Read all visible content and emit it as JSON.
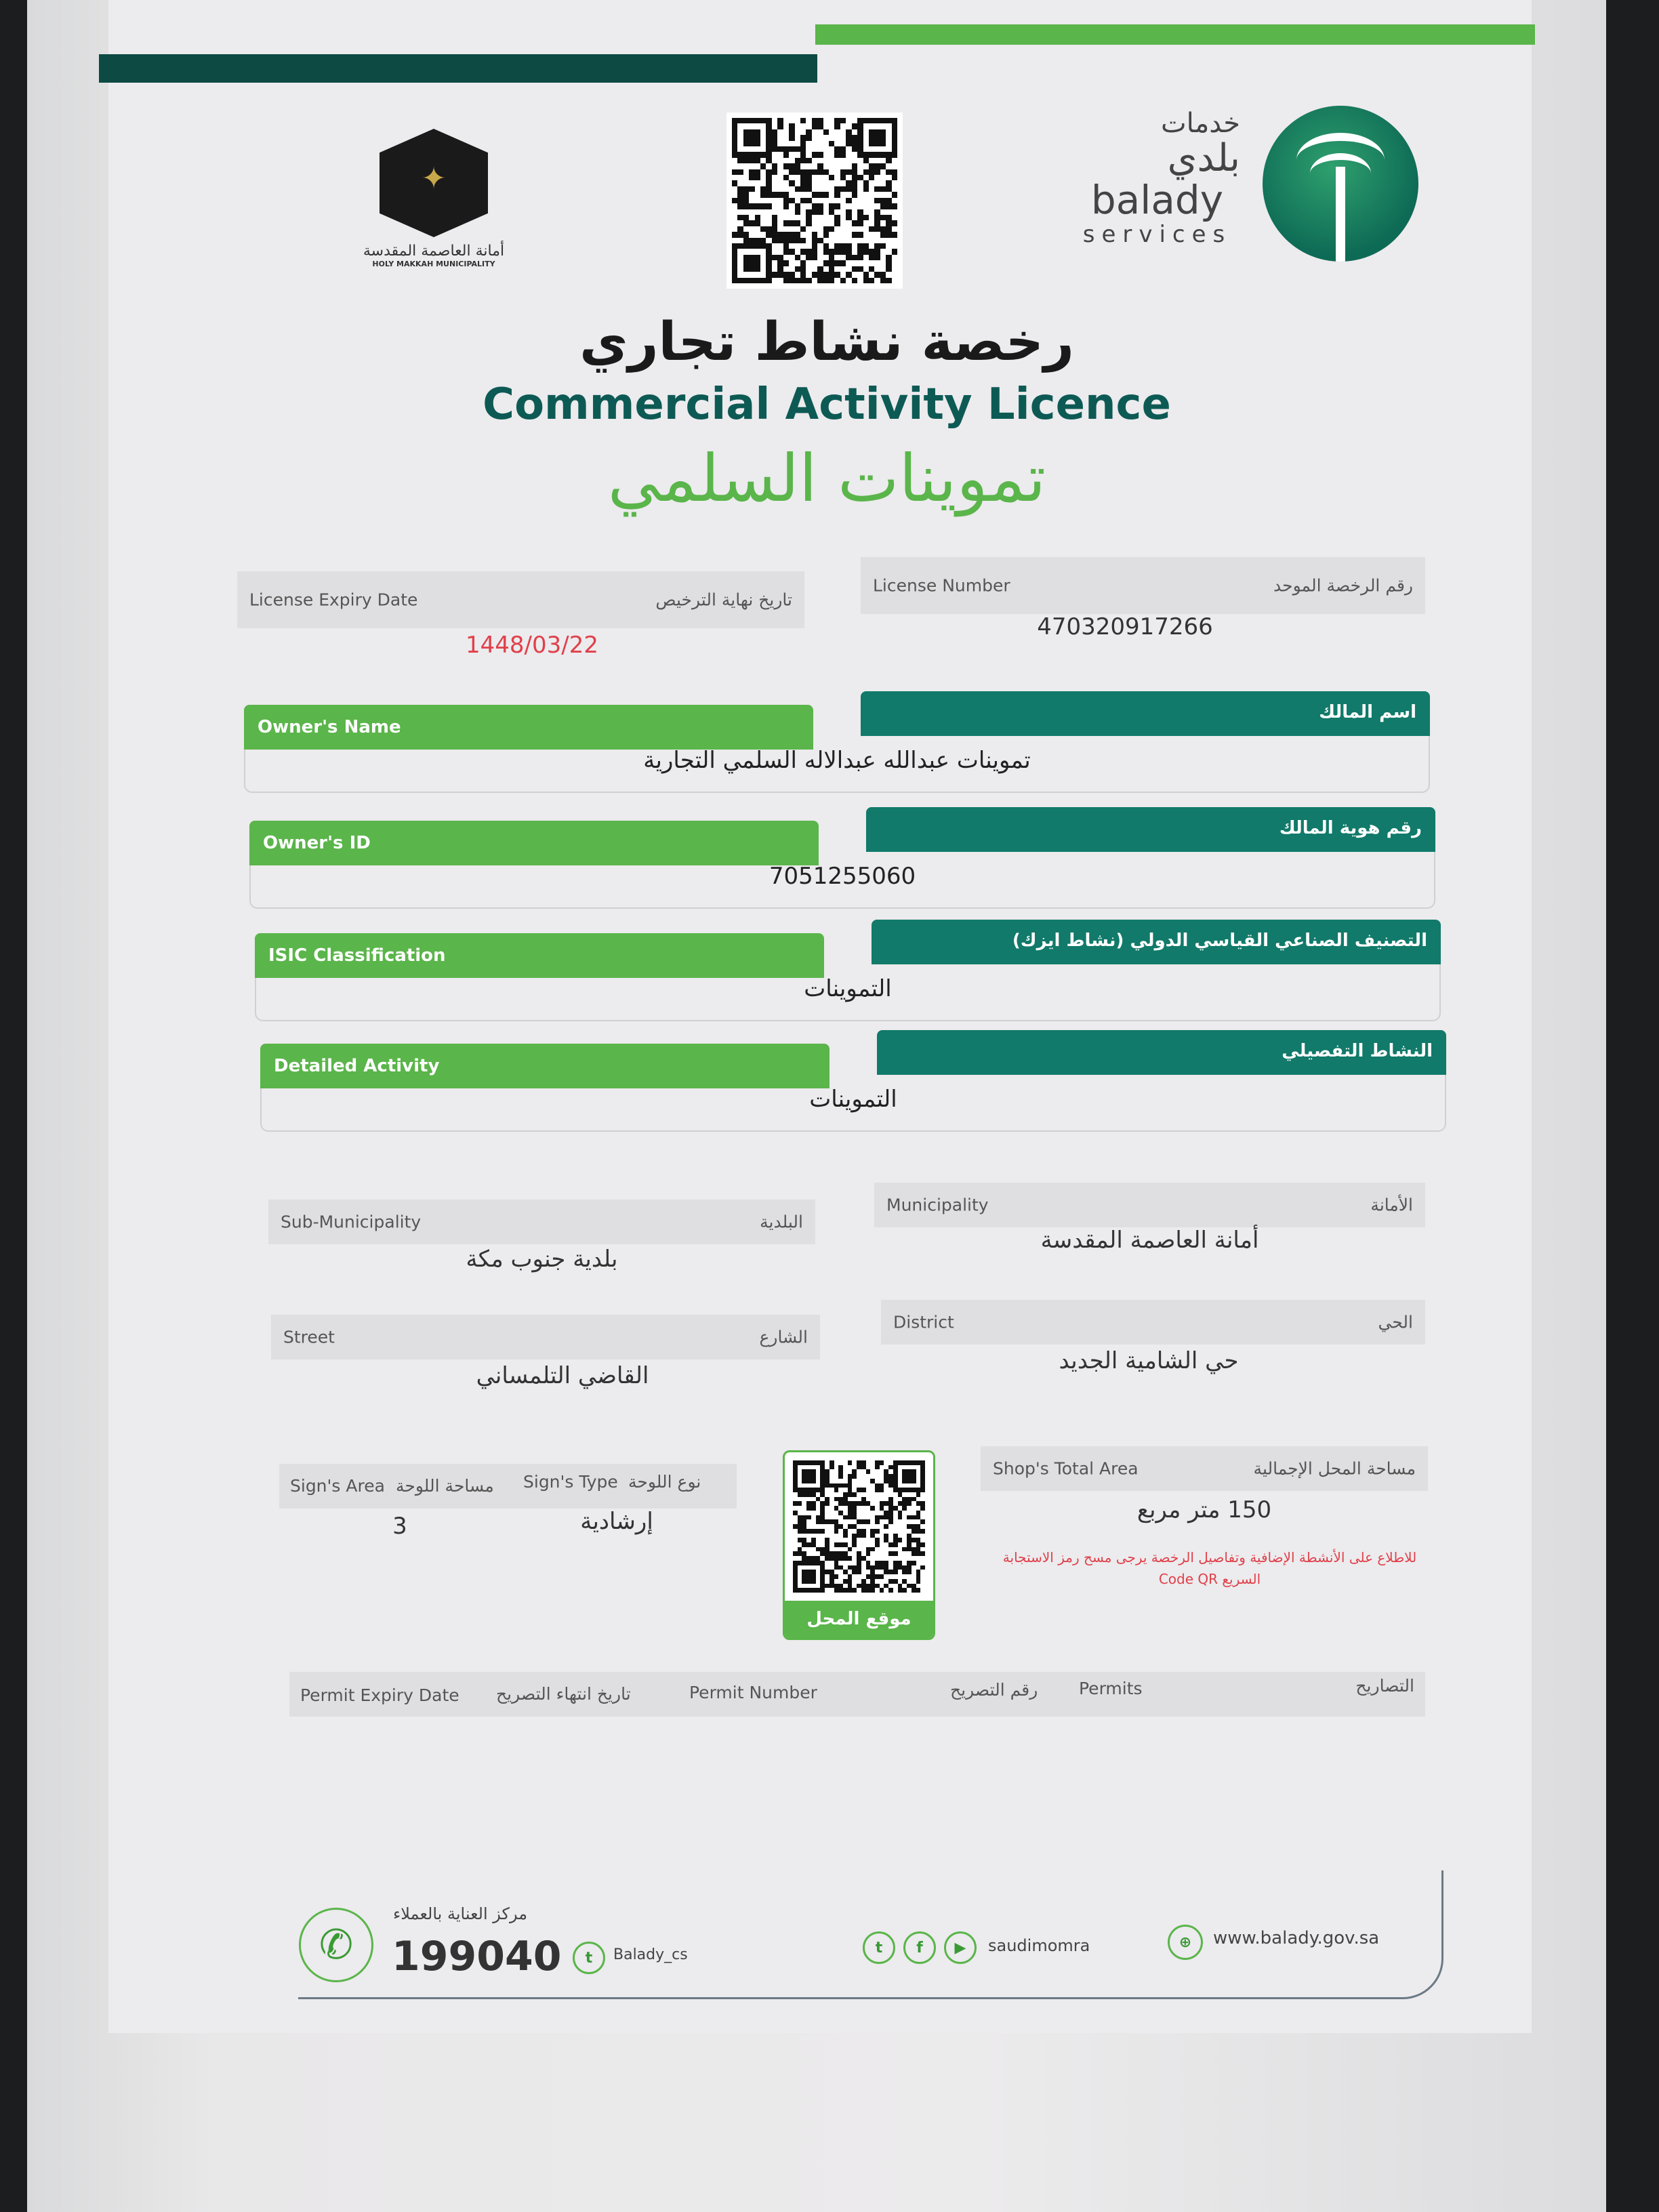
{
  "header": {
    "makkah_logo_text_ar": "أمانة العاصمة المقدسة",
    "makkah_logo_text_en": "HOLY MAKKAH MUNICIPALITY",
    "balady_ar_top": "خدمات",
    "balady_ar": "بلدي",
    "balady_en": "balady",
    "balady_services": "services"
  },
  "title": {
    "ar": "رخصة نشاط تجاري",
    "en": "Commercial Activity Licence",
    "shop_name": "تموينات السلمي"
  },
  "license": {
    "expiry_label_en": "License Expiry Date",
    "expiry_label_ar": "تاريخ نهاية الترخيص",
    "expiry_value": "1448/03/22",
    "number_label_en": "License Number",
    "number_label_ar": "رقم الرخصة الموحد",
    "number_value": "470320917266"
  },
  "sections": [
    {
      "label_en": "Owner's Name",
      "label_ar": "اسم المالك",
      "value": "تموينات عبدالله عبدالاله السلمي التجارية"
    },
    {
      "label_en": "Owner's ID",
      "label_ar": "رقم هوية المالك",
      "value": "7051255060"
    },
    {
      "label_en": "ISIC Classification",
      "label_ar": "التصنيف الصناعي القياسي الدولي (نشاط ايزك)",
      "value": "التموينات"
    },
    {
      "label_en": "Detailed Activity",
      "label_ar": "النشاط التفصيلي",
      "value": "التموينات"
    }
  ],
  "address": {
    "sub_municipality_en": "Sub-Municipality",
    "sub_municipality_ar": "البلدية",
    "sub_municipality_value": "بلدية جنوب مكة",
    "municipality_en": "Municipality",
    "municipality_ar": "الأمانة",
    "municipality_value": "أمانة العاصمة المقدسة",
    "street_en": "Street",
    "street_ar": "الشارع",
    "street_value": "القاضي التلمساني",
    "district_en": "District",
    "district_ar": "الحي",
    "district_value": "حي الشامية الجديد"
  },
  "sign": {
    "area_en": "Sign's Area",
    "area_ar": "مساحة اللوحة",
    "area_value": "3",
    "type_en": "Sign's Type",
    "type_ar": "نوع اللوحة",
    "type_value": "إرشادية"
  },
  "shop_qr_label": "موقع المحل",
  "shop_area": {
    "label_en": "Shop's Total Area",
    "label_ar": "مساحة المحل الإجمالية",
    "value": "150 متر مربع",
    "notice": "للاطلاع على الأنشطة الإضافية وتفاصيل الرخصة يرجى مسح رمز الاستجابة السريع Code QR"
  },
  "permits": {
    "expiry_en": "Permit Expiry Date",
    "expiry_ar": "تاريخ انتهاء التصريح",
    "number_en": "Permit Number",
    "number_ar": "رقم التصريح",
    "permits_en": "Permits",
    "permits_ar": "التصاريح"
  },
  "footer": {
    "care_center_ar": "مركز العناية بالعملاء",
    "phone": "199040",
    "twitter_cs": "Balady_cs",
    "social_handle": "saudimomra",
    "website": "www.balady.gov.sa"
  },
  "colors": {
    "dark_teal": "#0d4a44",
    "teal": "#117a6a",
    "green": "#5ab54a",
    "red": "#e0404a"
  }
}
